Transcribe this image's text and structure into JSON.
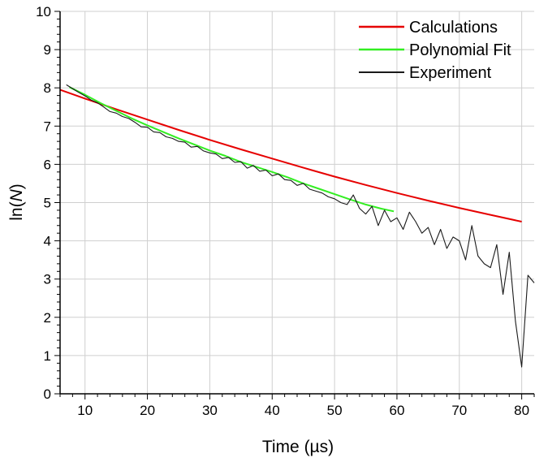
{
  "chart_data": {
    "type": "line",
    "title": "",
    "xlabel": "Time (µs)",
    "ylabel_prefix": "ln(",
    "ylabel_var": "N",
    "ylabel_suffix": ")",
    "xlim": [
      6,
      82
    ],
    "ylim": [
      0,
      10
    ],
    "x_ticks": [
      10,
      20,
      30,
      40,
      50,
      60,
      70,
      80
    ],
    "y_ticks": [
      0,
      1,
      2,
      3,
      4,
      5,
      6,
      7,
      8,
      9,
      10
    ],
    "grid": true,
    "legend_position": "top-right",
    "series": [
      {
        "name": "Calculations",
        "color": "#e60000",
        "x": [
          6,
          10,
          15,
          20,
          25,
          30,
          35,
          40,
          45,
          50,
          55,
          60,
          65,
          70,
          75,
          80
        ],
        "y": [
          7.95,
          7.72,
          7.44,
          7.17,
          6.9,
          6.64,
          6.39,
          6.15,
          5.91,
          5.68,
          5.46,
          5.25,
          5.05,
          4.86,
          4.68,
          4.5
        ]
      },
      {
        "name": "Polynomial Fit",
        "color": "#33ee22",
        "x": [
          7.5,
          10,
          12.5,
          15,
          17.5,
          20,
          22.5,
          25,
          27.5,
          30,
          32.5,
          35,
          37.5,
          40,
          42.5,
          45,
          47.5,
          50,
          52.5,
          55,
          57.5,
          59.5
        ],
        "y": [
          8.02,
          7.82,
          7.6,
          7.4,
          7.2,
          7.02,
          6.85,
          6.68,
          6.52,
          6.36,
          6.22,
          6.06,
          5.93,
          5.8,
          5.66,
          5.5,
          5.36,
          5.22,
          5.08,
          4.95,
          4.84,
          4.77
        ]
      },
      {
        "name": "Experiment",
        "color": "#1a1a1a",
        "x": [
          7,
          8,
          9,
          10,
          11,
          12,
          13,
          14,
          15,
          16,
          17,
          18,
          19,
          20,
          21,
          22,
          23,
          24,
          25,
          26,
          27,
          28,
          29,
          30,
          31,
          32,
          33,
          34,
          35,
          36,
          37,
          38,
          39,
          40,
          41,
          42,
          43,
          44,
          45,
          46,
          47,
          48,
          49,
          50,
          51,
          52,
          53,
          54,
          55,
          56,
          57,
          58,
          59,
          60,
          61,
          62,
          63,
          64,
          65,
          66,
          67,
          68,
          69,
          70,
          71,
          72,
          73,
          74,
          75,
          76,
          77,
          78,
          79,
          80,
          81,
          82
        ],
        "y": [
          8.08,
          7.98,
          7.88,
          7.79,
          7.68,
          7.61,
          7.5,
          7.38,
          7.34,
          7.25,
          7.2,
          7.1,
          6.98,
          6.97,
          6.85,
          6.83,
          6.72,
          6.68,
          6.6,
          6.58,
          6.45,
          6.47,
          6.35,
          6.3,
          6.27,
          6.15,
          6.18,
          6.05,
          6.07,
          5.9,
          5.97,
          5.82,
          5.85,
          5.7,
          5.75,
          5.6,
          5.58,
          5.45,
          5.5,
          5.35,
          5.3,
          5.25,
          5.15,
          5.1,
          5.0,
          4.95,
          5.2,
          4.85,
          4.7,
          4.9,
          4.4,
          4.8,
          4.5,
          4.6,
          4.3,
          4.75,
          4.5,
          4.2,
          4.35,
          3.9,
          4.3,
          3.8,
          4.1,
          4.0,
          3.5,
          4.4,
          3.6,
          3.4,
          3.3,
          3.9,
          2.6,
          3.7,
          1.9,
          0.7,
          3.1,
          2.9
        ]
      }
    ]
  }
}
